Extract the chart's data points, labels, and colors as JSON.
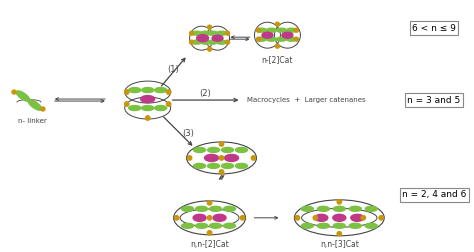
{
  "bg_color": "#ffffff",
  "green": "#7bc142",
  "magenta": "#c0388a",
  "gold": "#c8960c",
  "lc": "#444444",
  "labels": {
    "n_linker": "n- linker",
    "n2cat": "n-[2]Cat",
    "macrocycles": "Macrocycles  +  Larger catenanes",
    "n2n2cat": "n,n-[2]Cat",
    "n2n3cat": "n,n-[3]Cat",
    "p1": "(1)",
    "p2": "(2)",
    "p3": "(3)",
    "box1": "6 < n ≤ 9",
    "box2": "n = 3 and 5",
    "box3": "n = 2, 4 and 6"
  },
  "figsize": [
    4.74,
    2.52
  ],
  "dpi": 100
}
